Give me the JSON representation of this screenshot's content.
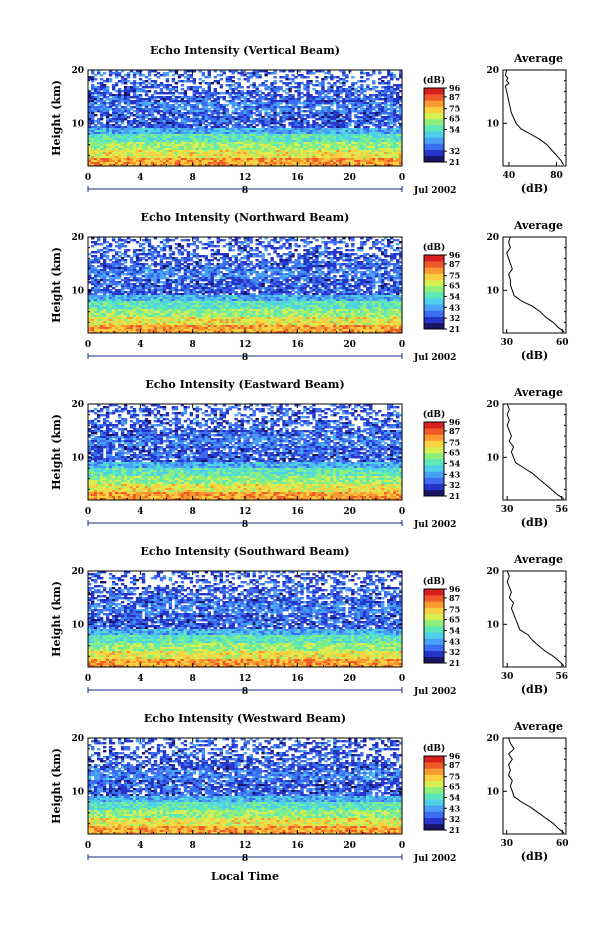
{
  "xlabel": "Local Time",
  "colors": [
    "#1a1466",
    "#2435c8",
    "#3c6cf0",
    "#4aa0f5",
    "#4fd0e8",
    "#5ee8b8",
    "#8ef07a",
    "#d8ee52",
    "#f8d040",
    "#f89a30",
    "#f05a28",
    "#d82020"
  ],
  "chart_data": [
    {
      "type": "heatmap",
      "title": "Echo Intensity (Vertical Beam)",
      "ylabel": "Height (km)",
      "x_ticks": [
        "0",
        "4",
        "8",
        "12",
        "16",
        "20",
        "0"
      ],
      "y_ticks": [
        "10",
        "20"
      ],
      "xlim": [
        0,
        24
      ],
      "ylim": [
        2,
        20
      ],
      "date_marker": "8",
      "date_label": "Jul 2002",
      "colorbar": {
        "unit": "(dB)",
        "ticks": [
          "96",
          "87",
          "75",
          "65",
          "54",
          "32",
          "21"
        ],
        "ramp": [
          21,
          96
        ]
      },
      "profile": {
        "title": "Average",
        "xlabel": "(dB)",
        "x_ticks": [
          "40",
          "80"
        ],
        "xlim": [
          35,
          88
        ],
        "y_ticks": [
          "10",
          "20"
        ],
        "ylim": [
          2,
          20
        ],
        "points": [
          [
            86,
            2.2
          ],
          [
            84,
            3
          ],
          [
            80,
            4
          ],
          [
            76,
            5
          ],
          [
            72,
            6
          ],
          [
            66,
            7
          ],
          [
            58,
            8
          ],
          [
            50,
            9
          ],
          [
            46,
            10
          ],
          [
            44,
            11
          ],
          [
            42,
            12
          ],
          [
            41,
            13
          ],
          [
            40,
            14
          ],
          [
            39,
            15
          ],
          [
            38,
            16
          ],
          [
            37,
            17
          ],
          [
            40,
            17.5
          ],
          [
            38,
            18
          ],
          [
            39,
            18.5
          ],
          [
            37,
            19
          ],
          [
            38,
            20
          ]
        ]
      }
    },
    {
      "type": "heatmap",
      "title": "Echo Intensity (Northward Beam)",
      "ylabel": "Height (km)",
      "x_ticks": [
        "0",
        "4",
        "8",
        "12",
        "16",
        "20",
        "0"
      ],
      "y_ticks": [
        "10",
        "20"
      ],
      "xlim": [
        0,
        24
      ],
      "ylim": [
        2,
        20
      ],
      "date_marker": "8",
      "date_label": "Jul 2002",
      "colorbar": {
        "unit": "(dB)",
        "ticks": [
          "96",
          "87",
          "75",
          "65",
          "54",
          "43",
          "32",
          "21"
        ],
        "ramp": [
          21,
          96
        ]
      },
      "profile": {
        "title": "Average",
        "xlabel": "(dB)",
        "x_ticks": [
          "30",
          "60"
        ],
        "xlim": [
          28,
          62
        ],
        "y_ticks": [
          "10",
          "20"
        ],
        "ylim": [
          2,
          20
        ],
        "points": [
          [
            61,
            2.2
          ],
          [
            58,
            3
          ],
          [
            55,
            4
          ],
          [
            51,
            5
          ],
          [
            48,
            6
          ],
          [
            44,
            7
          ],
          [
            38,
            8
          ],
          [
            34,
            9
          ],
          [
            33,
            10
          ],
          [
            32,
            11
          ],
          [
            32,
            12
          ],
          [
            31,
            13
          ],
          [
            33,
            14
          ],
          [
            32,
            15
          ],
          [
            31,
            16
          ],
          [
            30,
            17
          ],
          [
            32,
            18
          ],
          [
            31,
            19
          ],
          [
            32,
            20
          ]
        ]
      }
    },
    {
      "type": "heatmap",
      "title": "Echo Intensity (Eastward Beam)",
      "ylabel": "Height (km)",
      "x_ticks": [
        "0",
        "4",
        "8",
        "12",
        "16",
        "20",
        "0"
      ],
      "y_ticks": [
        "10",
        "20"
      ],
      "xlim": [
        0,
        24
      ],
      "ylim": [
        2,
        20
      ],
      "date_marker": "8",
      "date_label": "Jul 2002",
      "colorbar": {
        "unit": "(dB)",
        "ticks": [
          "96",
          "87",
          "75",
          "65",
          "54",
          "43",
          "32",
          "21"
        ],
        "ramp": [
          21,
          96
        ]
      },
      "profile": {
        "title": "Average",
        "xlabel": "(dB)",
        "x_ticks": [
          "30",
          "56"
        ],
        "xlim": [
          28,
          58
        ],
        "y_ticks": [
          "10",
          "20"
        ],
        "ylim": [
          2,
          20
        ],
        "points": [
          [
            57,
            2.2
          ],
          [
            54,
            3
          ],
          [
            51,
            4
          ],
          [
            48,
            5
          ],
          [
            45,
            6
          ],
          [
            42,
            7
          ],
          [
            38,
            8
          ],
          [
            34,
            9
          ],
          [
            33,
            10
          ],
          [
            32,
            11
          ],
          [
            33,
            12
          ],
          [
            31,
            13
          ],
          [
            32,
            14
          ],
          [
            31,
            15
          ],
          [
            30,
            16
          ],
          [
            31,
            17
          ],
          [
            30,
            18
          ],
          [
            31,
            19
          ],
          [
            30,
            20
          ]
        ]
      }
    },
    {
      "type": "heatmap",
      "title": "Echo Intensity (Southward Beam)",
      "ylabel": "Height (km)",
      "x_ticks": [
        "0",
        "4",
        "8",
        "12",
        "16",
        "20",
        "0"
      ],
      "y_ticks": [
        "10",
        "20"
      ],
      "xlim": [
        0,
        24
      ],
      "ylim": [
        2,
        20
      ],
      "date_marker": "8",
      "date_label": "Jul 2002",
      "colorbar": {
        "unit": "(dB)",
        "ticks": [
          "96",
          "87",
          "75",
          "65",
          "54",
          "43",
          "32",
          "21"
        ],
        "ramp": [
          21,
          96
        ]
      },
      "profile": {
        "title": "Average",
        "xlabel": "(dB)",
        "x_ticks": [
          "30",
          "56"
        ],
        "xlim": [
          28,
          58
        ],
        "y_ticks": [
          "10",
          "20"
        ],
        "ylim": [
          2,
          20
        ],
        "points": [
          [
            57,
            2.2
          ],
          [
            55,
            3
          ],
          [
            52,
            4
          ],
          [
            48,
            5
          ],
          [
            45,
            6
          ],
          [
            42,
            7
          ],
          [
            40,
            8
          ],
          [
            36,
            9
          ],
          [
            35,
            10
          ],
          [
            34,
            11
          ],
          [
            33,
            12
          ],
          [
            32,
            13
          ],
          [
            33,
            14
          ],
          [
            31,
            15
          ],
          [
            32,
            16
          ],
          [
            31,
            17
          ],
          [
            30,
            18
          ],
          [
            31,
            19
          ],
          [
            30,
            20
          ]
        ]
      }
    },
    {
      "type": "heatmap",
      "title": "Echo Intensity (Westward Beam)",
      "ylabel": "Height (km)",
      "x_ticks": [
        "0",
        "4",
        "8",
        "12",
        "16",
        "20",
        "0"
      ],
      "y_ticks": [
        "10",
        "20"
      ],
      "xlim": [
        0,
        24
      ],
      "ylim": [
        2,
        20
      ],
      "date_marker": "8",
      "date_label": "Jul 2002",
      "colorbar": {
        "unit": "(dB)",
        "ticks": [
          "96",
          "87",
          "75",
          "65",
          "54",
          "43",
          "32",
          "21"
        ],
        "ramp": [
          21,
          96
        ]
      },
      "profile": {
        "title": "Average",
        "xlabel": "(dB)",
        "x_ticks": [
          "30",
          "60"
        ],
        "xlim": [
          28,
          62
        ],
        "y_ticks": [
          "10",
          "20"
        ],
        "ylim": [
          2,
          20
        ],
        "points": [
          [
            61,
            2.2
          ],
          [
            58,
            3
          ],
          [
            55,
            4
          ],
          [
            51,
            5
          ],
          [
            47,
            6
          ],
          [
            43,
            7
          ],
          [
            38,
            8
          ],
          [
            34,
            9
          ],
          [
            33,
            10
          ],
          [
            32,
            11
          ],
          [
            33,
            12
          ],
          [
            31,
            13
          ],
          [
            32,
            14
          ],
          [
            31,
            15
          ],
          [
            33,
            16
          ],
          [
            31,
            17
          ],
          [
            34,
            18
          ],
          [
            32,
            19
          ],
          [
            31,
            20
          ]
        ]
      }
    }
  ]
}
